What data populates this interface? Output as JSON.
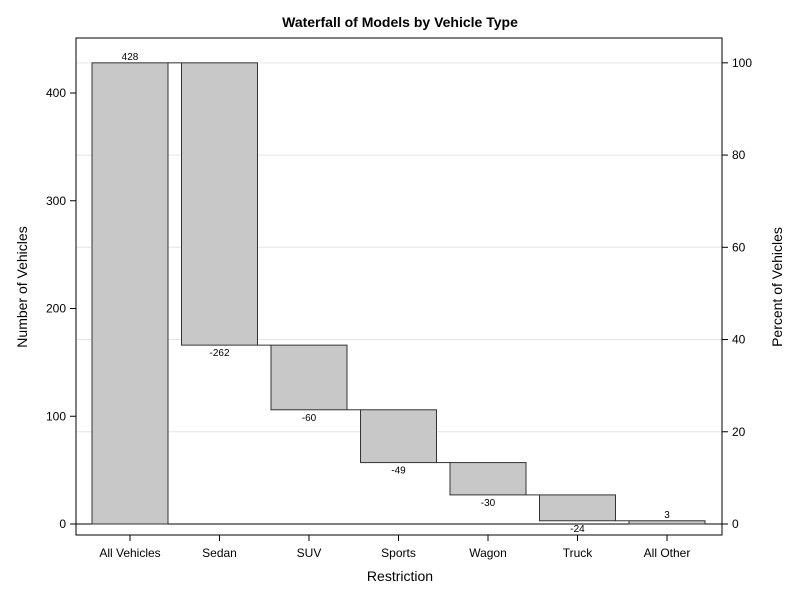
{
  "chart_data": {
    "type": "bar",
    "subtype": "waterfall",
    "title": "Waterfall of Models by Vehicle Type",
    "xlabel": "Restriction",
    "ylabel": "Number of Vehicles",
    "y2label": "Percent of Vehicles",
    "categories": [
      "All Vehicles",
      "Sedan",
      "SUV",
      "Sports",
      "Wagon",
      "Truck",
      "All Other"
    ],
    "values": [
      428,
      -262,
      -60,
      -49,
      -30,
      -24,
      3
    ],
    "data_labels": [
      "428",
      "-262",
      "-60",
      "-49",
      "-30",
      "-24",
      "3"
    ],
    "ylim": [
      -11,
      448
    ],
    "yticks": [
      0,
      100,
      200,
      300,
      400
    ],
    "y2ticks": [
      0,
      20,
      40,
      60,
      80,
      100
    ],
    "grid": "horizontal at y2 ticks",
    "colors": {
      "bar_fill": "#c8c8c8",
      "bar_stroke": "#333333",
      "grid": "#e6e6e6"
    }
  }
}
